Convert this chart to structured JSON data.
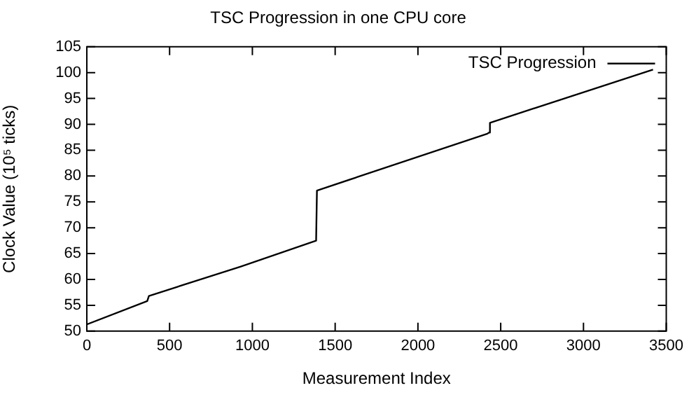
{
  "chart_data": {
    "type": "line",
    "title": "TSC Progression in one CPU core",
    "xlabel": "Measurement Index",
    "ylabel": "Clock Value (10⁵ ticks)",
    "series": [
      {
        "name": "TSC Progression",
        "color": "#000000",
        "x": [
          0,
          365,
          375,
          930,
          1385,
          1390,
          2420,
          2430,
          2435,
          3420
        ],
        "values": [
          51.3,
          55.8,
          56.8,
          62.5,
          67.5,
          77.2,
          88.2,
          88.4,
          90.3,
          100.6
        ]
      }
    ],
    "xlim": [
      0,
      3500
    ],
    "xticks": [
      0,
      500,
      1000,
      1500,
      2000,
      2500,
      3000,
      3500
    ],
    "ylim": [
      50,
      105
    ],
    "yticks": [
      50,
      55,
      60,
      65,
      70,
      75,
      80,
      85,
      90,
      95,
      100,
      105
    ],
    "grid": false,
    "legend": "top right",
    "marker": "none",
    "line_style": "solid"
  }
}
